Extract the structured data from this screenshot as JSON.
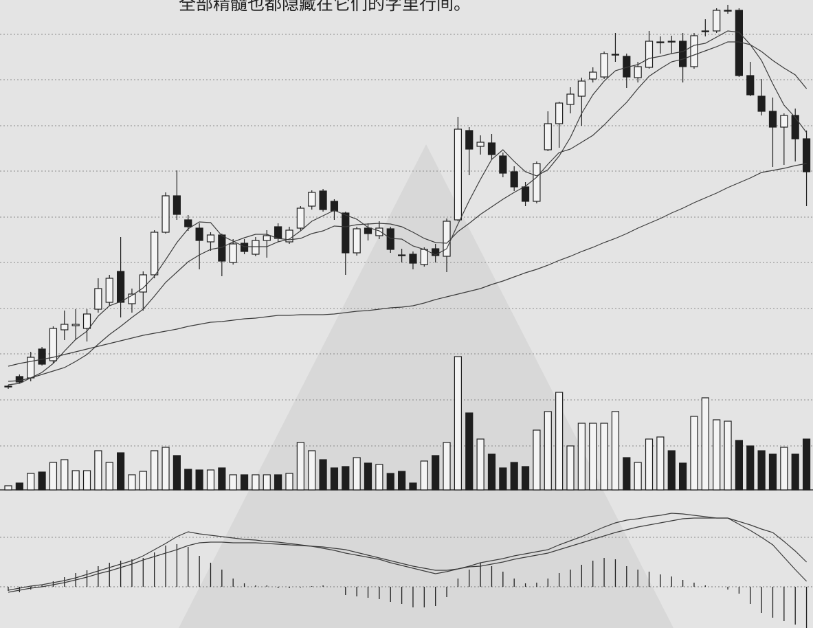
{
  "caption": "全部精髓也都隐藏在它们的字里行间。",
  "chart_data": [
    {
      "type": "candlestick",
      "color": "#1e1e1e",
      "ylim": [
        20,
        600
      ],
      "open": [
        37,
        52,
        50,
        92,
        75,
        120,
        126,
        122,
        150,
        160,
        205,
        158,
        175,
        200,
        262,
        315,
        280,
        268,
        248,
        258,
        218,
        246,
        230,
        250,
        270,
        248,
        268,
        300,
        322,
        307,
        290,
        232,
        268,
        257,
        267,
        229,
        230,
        215,
        238,
        227,
        280,
        410,
        387,
        392,
        373,
        350,
        328,
        307,
        382,
        420,
        448,
        460,
        485,
        488,
        520,
        518,
        487,
        502,
        538,
        540,
        540,
        503,
        554,
        555,
        584,
        585,
        490,
        460,
        438,
        415,
        432,
        398
      ],
      "high": [
        40,
        55,
        88,
        95,
        125,
        148,
        150,
        150,
        195,
        200,
        255,
        180,
        205,
        265,
        320,
        352,
        287,
        275,
        262,
        260,
        252,
        252,
        255,
        265,
        275,
        270,
        300,
        323,
        325,
        310,
        292,
        270,
        275,
        278,
        270,
        238,
        234,
        240,
        245,
        282,
        430,
        415,
        403,
        405,
        378,
        358,
        335,
        365,
        438,
        452,
        473,
        487,
        502,
        525,
        552,
        522,
        510,
        555,
        547,
        548,
        552,
        552,
        572,
        588,
        593,
        588,
        510,
        485,
        458,
        435,
        442,
        410
      ],
      "low": [
        34,
        42,
        45,
        68,
        72,
        105,
        105,
        103,
        145,
        155,
        138,
        145,
        148,
        195,
        260,
        280,
        264,
        208,
        235,
        198,
        215,
        230,
        227,
        225,
        248,
        245,
        264,
        295,
        292,
        280,
        200,
        228,
        250,
        252,
        232,
        218,
        208,
        212,
        218,
        204,
        278,
        345,
        375,
        368,
        342,
        322,
        300,
        304,
        380,
        385,
        435,
        417,
        480,
        485,
        510,
        472,
        480,
        500,
        522,
        522,
        480,
        500,
        547,
        552,
        580,
        488,
        460,
        432,
        357,
        360,
        365,
        300
      ],
      "close": [
        38,
        44,
        80,
        70,
        122,
        128,
        128,
        143,
        180,
        195,
        160,
        172,
        200,
        262,
        315,
        288,
        270,
        250,
        258,
        220,
        245,
        234,
        250,
        257,
        253,
        265,
        297,
        320,
        295,
        293,
        232,
        267,
        260,
        268,
        237,
        228,
        217,
        237,
        228,
        278,
        412,
        383,
        393,
        375,
        348,
        328,
        307,
        362,
        420,
        450,
        463,
        482,
        495,
        522,
        521,
        488,
        503,
        540,
        539,
        539,
        503,
        548,
        555,
        585,
        585,
        490,
        462,
        438,
        415,
        432,
        398,
        350
      ],
      "lines": [
        {
          "color": "#3a3a3a",
          "values": [
            40,
            42,
            50,
            58,
            71,
            89,
            106,
            118,
            140,
            155,
            161,
            170,
            181,
            198,
            222,
            247,
            267,
            277,
            276,
            257,
            249,
            241,
            241,
            241,
            248,
            252,
            264,
            278,
            286,
            294,
            287,
            281,
            269,
            264,
            253,
            252,
            242,
            237,
            229,
            238,
            274,
            308,
            339,
            368,
            382,
            365,
            350,
            344,
            353,
            373,
            400,
            435,
            462,
            482,
            497,
            502,
            506,
            515,
            518,
            522,
            525,
            534,
            537,
            546,
            555,
            553,
            535,
            512,
            478,
            447,
            429,
            407
          ]
        },
        {
          "color": "#3a3a3a",
          "values": [
            45,
            46,
            50,
            55,
            60,
            65,
            74,
            84,
            99,
            113,
            125,
            138,
            150,
            169,
            189,
            204,
            219,
            229,
            237,
            240,
            248,
            254,
            259,
            259,
            253,
            251,
            253,
            260,
            264,
            271,
            270,
            273,
            274,
            275,
            274,
            270,
            262,
            253,
            247,
            246,
            263,
            275,
            288,
            299,
            310,
            320,
            329,
            342,
            361,
            378,
            383,
            393,
            403,
            418,
            435,
            451,
            471,
            489,
            500,
            510,
            514,
            520,
            526,
            532,
            539,
            539,
            535,
            525,
            512,
            501,
            491,
            471
          ]
        },
        {
          "color": "#3a3a3a",
          "values": [
            67,
            71,
            74,
            77,
            80,
            84,
            88,
            92,
            96,
            100,
            104,
            108,
            112,
            115,
            118,
            121,
            125,
            128,
            131,
            132,
            134,
            136,
            137,
            139,
            141,
            141,
            142,
            142,
            142,
            143,
            145,
            147,
            148,
            150,
            152,
            153,
            155,
            159,
            164,
            168,
            172,
            176,
            180,
            186,
            191,
            197,
            203,
            208,
            214,
            221,
            227,
            234,
            240,
            247,
            253,
            260,
            268,
            275,
            282,
            290,
            297,
            305,
            312,
            319,
            327,
            334,
            341,
            349,
            352,
            355,
            359,
            362
          ]
        }
      ]
    },
    {
      "type": "bar",
      "color": "#1e1e1e",
      "ylim": [
        0,
        200
      ],
      "values": [
        6,
        10,
        24,
        26,
        40,
        44,
        28,
        28,
        57,
        40,
        54,
        22,
        27,
        57,
        62,
        50,
        30,
        29,
        29,
        32,
        22,
        22,
        22,
        22,
        22,
        24,
        69,
        57,
        44,
        32,
        34,
        47,
        39,
        37,
        24,
        27,
        10,
        42,
        50,
        69,
        194,
        112,
        74,
        52,
        32,
        40,
        34,
        87,
        114,
        142,
        64,
        97,
        97,
        97,
        114,
        47,
        40,
        74,
        77,
        57,
        39,
        107,
        134,
        102,
        100,
        72,
        64,
        57,
        52,
        62,
        52,
        74
      ]
    },
    {
      "type": "macd",
      "color": "#1e1e1e",
      "ylim": [
        -60,
        130
      ],
      "values": [
        -6,
        -8,
        -4,
        2,
        8,
        14,
        20,
        24,
        30,
        35,
        38,
        40,
        42,
        50,
        60,
        62,
        58,
        45,
        35,
        25,
        12,
        5,
        2,
        2,
        -2,
        -2,
        -1,
        1,
        2,
        0,
        -12,
        -14,
        -16,
        -18,
        -22,
        -25,
        -30,
        -30,
        -28,
        -15,
        12,
        25,
        35,
        30,
        22,
        12,
        5,
        6,
        12,
        20,
        25,
        32,
        38,
        42,
        40,
        30,
        25,
        22,
        18,
        15,
        10,
        6,
        2,
        0,
        -4,
        -10,
        -25,
        -38,
        -45,
        -50,
        -55,
        -60
      ],
      "lines": [
        {
          "color": "#3a3a3a",
          "values": [
            -5,
            -2,
            1,
            3,
            6,
            9,
            13,
            18,
            23,
            28,
            33,
            38,
            45,
            54,
            63,
            73,
            80,
            77,
            75,
            73,
            71,
            69,
            68,
            66,
            65,
            63,
            61,
            59,
            56,
            53,
            49,
            46,
            43,
            40,
            35,
            31,
            27,
            23,
            19,
            22,
            26,
            30,
            35,
            38,
            41,
            45,
            48,
            51,
            54,
            61,
            67,
            73,
            80,
            87,
            93,
            97,
            99,
            102,
            104,
            107,
            106,
            104,
            102,
            100,
            100,
            91,
            82,
            72,
            61,
            43,
            25,
            8
          ]
        },
        {
          "color": "#3a3a3a",
          "values": [
            -8,
            -5,
            -2,
            0,
            3,
            6,
            10,
            14,
            19,
            23,
            28,
            33,
            39,
            44,
            49,
            54,
            60,
            64,
            65,
            65,
            64,
            64,
            64,
            63,
            62,
            61,
            60,
            59,
            58,
            56,
            54,
            50,
            46,
            42,
            38,
            34,
            30,
            27,
            24,
            24,
            26,
            29,
            30,
            33,
            36,
            40,
            43,
            46,
            49,
            54,
            59,
            64,
            69,
            74,
            79,
            83,
            87,
            90,
            93,
            96,
            99,
            100,
            100,
            100,
            100,
            95,
            90,
            84,
            79,
            66,
            52,
            36
          ]
        }
      ]
    }
  ]
}
